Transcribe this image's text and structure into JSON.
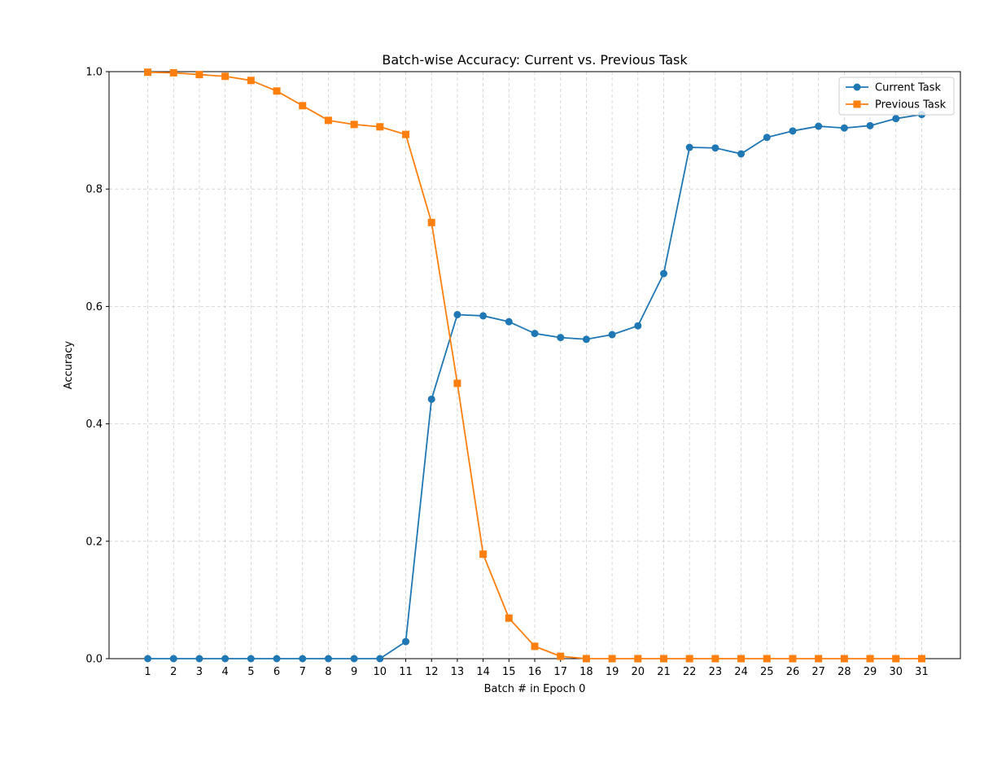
{
  "chart_data": {
    "type": "line",
    "title": "Batch-wise Accuracy: Current vs. Previous Task",
    "xlabel": "Batch # in Epoch 0",
    "ylabel": "Accuracy",
    "x": [
      1,
      2,
      3,
      4,
      5,
      6,
      7,
      8,
      9,
      10,
      11,
      12,
      13,
      14,
      15,
      16,
      17,
      18,
      19,
      20,
      21,
      22,
      23,
      24,
      25,
      26,
      27,
      28,
      29,
      30,
      31
    ],
    "xlim": [
      -0.5,
      32.5
    ],
    "ylim": [
      0.0,
      1.0
    ],
    "yticks": [
      0.0,
      0.2,
      0.4,
      0.6,
      0.8,
      1.0
    ],
    "ytick_labels": [
      "0.0",
      "0.2",
      "0.4",
      "0.6",
      "0.8",
      "1.0"
    ],
    "grid": true,
    "legend_position": "top-right",
    "series": [
      {
        "name": "Current Task",
        "color": "#1f77b4",
        "marker": "circle",
        "values": [
          0.0,
          0.0,
          0.0,
          0.0,
          0.0,
          0.0,
          0.0,
          0.0,
          0.0,
          0.0,
          0.029,
          0.442,
          0.586,
          0.584,
          0.574,
          0.554,
          0.547,
          0.544,
          0.552,
          0.567,
          0.656,
          0.871,
          0.87,
          0.86,
          0.888,
          0.899,
          0.907,
          0.904,
          0.908,
          0.92,
          0.927
        ]
      },
      {
        "name": "Previous Task",
        "color": "#ff7f0e",
        "marker": "square",
        "values": [
          0.999,
          0.998,
          0.995,
          0.992,
          0.985,
          0.967,
          0.942,
          0.917,
          0.91,
          0.906,
          0.893,
          0.743,
          0.469,
          0.178,
          0.069,
          0.021,
          0.004,
          0.0,
          0.0,
          0.0,
          0.0,
          0.0,
          0.0,
          0.0,
          0.0,
          0.0,
          0.0,
          0.0,
          0.0,
          0.0,
          0.0
        ]
      }
    ]
  }
}
